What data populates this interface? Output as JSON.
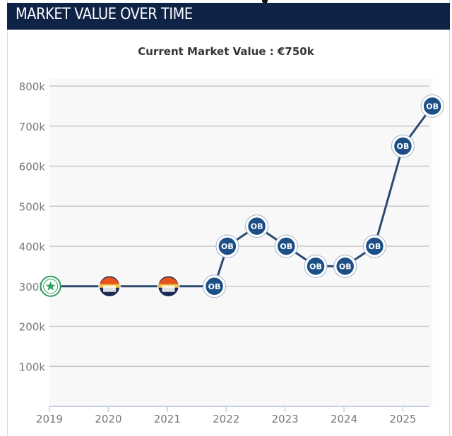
{
  "header": {
    "title": "MARKET VALUE OVER TIME"
  },
  "colors": {
    "header_bg": "#0f2347",
    "line": "#2b4a70",
    "grid": "#c8c8c8",
    "plot_bg": "#f8f8f8",
    "ob_badge": "#1b4f86",
    "club_green": "#2e9e5b",
    "club_orange": "#e8541c",
    "club_navy": "#1d2b55"
  },
  "chart_data": {
    "type": "line",
    "title": "Current Market Value : €750k",
    "xlabel": "",
    "ylabel": "",
    "ylim": [
      0,
      800000
    ],
    "xlim": [
      2019,
      2025.45
    ],
    "y_ticks": [
      {
        "value": 100000,
        "label": "100k"
      },
      {
        "value": 200000,
        "label": "200k"
      },
      {
        "value": 300000,
        "label": "300k"
      },
      {
        "value": 400000,
        "label": "400k"
      },
      {
        "value": 500000,
        "label": "500k"
      },
      {
        "value": 600000,
        "label": "600k"
      },
      {
        "value": 700000,
        "label": "700k"
      },
      {
        "value": 800000,
        "label": "800k"
      }
    ],
    "x_ticks": [
      {
        "value": 2019,
        "label": "2019"
      },
      {
        "value": 2020,
        "label": "2020"
      },
      {
        "value": 2021,
        "label": "2021"
      },
      {
        "value": 2022,
        "label": "2022"
      },
      {
        "value": 2023,
        "label": "2023"
      },
      {
        "value": 2024,
        "label": "2024"
      },
      {
        "value": 2025,
        "label": "2025"
      }
    ],
    "grid": true,
    "points": [
      {
        "x": 2019.02,
        "y": 300000,
        "club": "green-crest-icon"
      },
      {
        "x": 2020.02,
        "y": 300000,
        "club": "orange-crest-icon"
      },
      {
        "x": 2021.02,
        "y": 300000,
        "club": "orange-crest-icon"
      },
      {
        "x": 2021.8,
        "y": 300000,
        "club": "ob-crest-icon",
        "badge": "OB"
      },
      {
        "x": 2022.02,
        "y": 400000,
        "club": "ob-crest-icon",
        "badge": "OB"
      },
      {
        "x": 2022.52,
        "y": 450000,
        "club": "ob-crest-icon",
        "badge": "OB"
      },
      {
        "x": 2023.02,
        "y": 400000,
        "club": "ob-crest-icon",
        "badge": "OB"
      },
      {
        "x": 2023.52,
        "y": 350000,
        "club": "ob-crest-icon",
        "badge": "OB"
      },
      {
        "x": 2024.02,
        "y": 350000,
        "club": "ob-crest-icon",
        "badge": "OB"
      },
      {
        "x": 2024.52,
        "y": 400000,
        "club": "ob-crest-icon",
        "badge": "OB"
      },
      {
        "x": 2025.0,
        "y": 650000,
        "club": "ob-crest-icon",
        "badge": "OB"
      },
      {
        "x": 2025.5,
        "y": 750000,
        "club": "ob-crest-icon",
        "badge": "OB"
      }
    ]
  }
}
